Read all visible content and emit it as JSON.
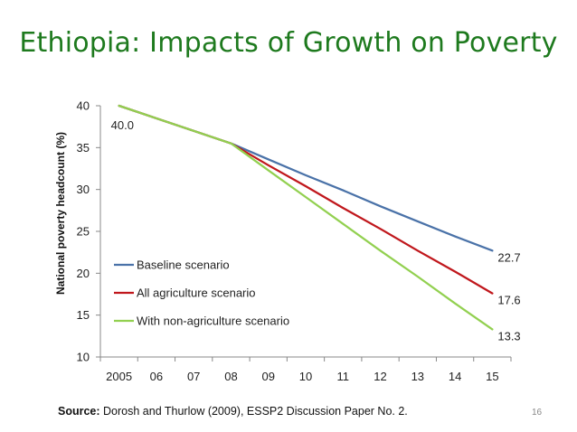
{
  "slide": {
    "title": "Ethiopia: Impacts of Growth on Poverty",
    "source_label": "Source:",
    "source_text": " Dorosh and Thurlow (2009), ESSP2 Discussion Paper No. 2.",
    "page_number": "16"
  },
  "chart_data": {
    "type": "line",
    "title": "",
    "xlabel": "",
    "ylabel": "National poverty headcount (%)",
    "categories": [
      "2005",
      "06",
      "07",
      "08",
      "09",
      "10",
      "11",
      "12",
      "13",
      "14",
      "15"
    ],
    "ylim": [
      10,
      40
    ],
    "yticks": [
      10,
      15,
      20,
      25,
      30,
      35,
      40
    ],
    "grid": false,
    "legend_position": "lower-left",
    "series": [
      {
        "name": "Baseline scenario",
        "color": "#4a72a8",
        "values": [
          40.0,
          38.5,
          37.0,
          35.5,
          33.6,
          31.7,
          29.9,
          28.0,
          26.2,
          24.4,
          22.7
        ]
      },
      {
        "name": "All agriculture scenario",
        "color": "#c0171c",
        "values": [
          40.0,
          38.5,
          37.0,
          35.5,
          32.9,
          30.4,
          27.8,
          25.3,
          22.7,
          20.2,
          17.6
        ]
      },
      {
        "name": "With non-agriculture scenario",
        "color": "#92d050",
        "values": [
          40.0,
          38.5,
          37.0,
          35.5,
          32.3,
          29.1,
          25.9,
          22.7,
          19.6,
          16.4,
          13.3
        ]
      }
    ],
    "data_labels": [
      {
        "series": 0,
        "index": 0,
        "text": "40.0"
      },
      {
        "series": 0,
        "index": 10,
        "text": "22.7"
      },
      {
        "series": 1,
        "index": 10,
        "text": "17.6"
      },
      {
        "series": 2,
        "index": 10,
        "text": "13.3"
      }
    ]
  }
}
